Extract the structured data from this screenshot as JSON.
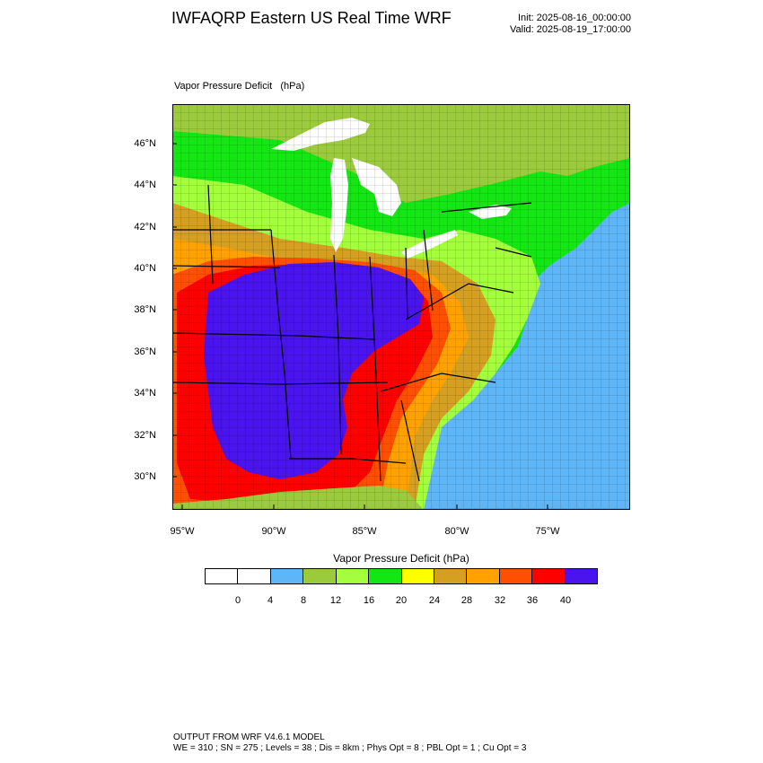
{
  "header": {
    "title": "IWFAQRP Eastern US Real Time WRF",
    "init": "Init: 2025-08-16_00:00:00",
    "valid": "Valid: 2025-08-19_17:00:00"
  },
  "plot": {
    "title": "Vapor Pressure Deficit   (hPa)",
    "lat_labels": [
      "46°N",
      "44°N",
      "42°N",
      "40°N",
      "38°N",
      "36°N",
      "34°N",
      "32°N",
      "30°N"
    ],
    "lon_labels": [
      "95°W",
      "90°W",
      "85°W",
      "80°W",
      "75°W"
    ]
  },
  "map": {
    "colors": {
      "ocean": "#5eb5f7",
      "lake": "#ffffff",
      "vpd_0_4": "#ffffff",
      "vpd_4_8": "#5eb5f7",
      "vpd_8_12": "#9bcb3c",
      "vpd_12_16": "#a3ff3c",
      "vpd_16_20": "#14e614",
      "vpd_20_24": "#ffff00",
      "vpd_24_28": "#d5a022",
      "vpd_28_32": "#ffa200",
      "vpd_32_36": "#ff4f00",
      "vpd_36_40": "#ff0000",
      "vpd_40_plus": "#4a14ee"
    }
  },
  "colorbar": {
    "title": "Vapor Pressure Deficit  (hPa)",
    "colors": [
      "#ffffff",
      "#ffffff",
      "#5eb5f7",
      "#9bcb3c",
      "#a3ff3c",
      "#14e614",
      "#ffff00",
      "#d5a022",
      "#ffa200",
      "#ff4f00",
      "#ff0000",
      "#4a14ee"
    ],
    "ticks": [
      "0",
      "4",
      "8",
      "12",
      "16",
      "20",
      "24",
      "28",
      "32",
      "36",
      "40"
    ]
  },
  "footer": {
    "line1": "OUTPUT FROM WRF V4.6.1 MODEL",
    "line2": "WE = 310 ; SN = 275 ; Levels = 38 ; Dis = 8km ; Phys Opt = 8 ; PBL Opt = 1 ; Cu Opt = 3"
  }
}
